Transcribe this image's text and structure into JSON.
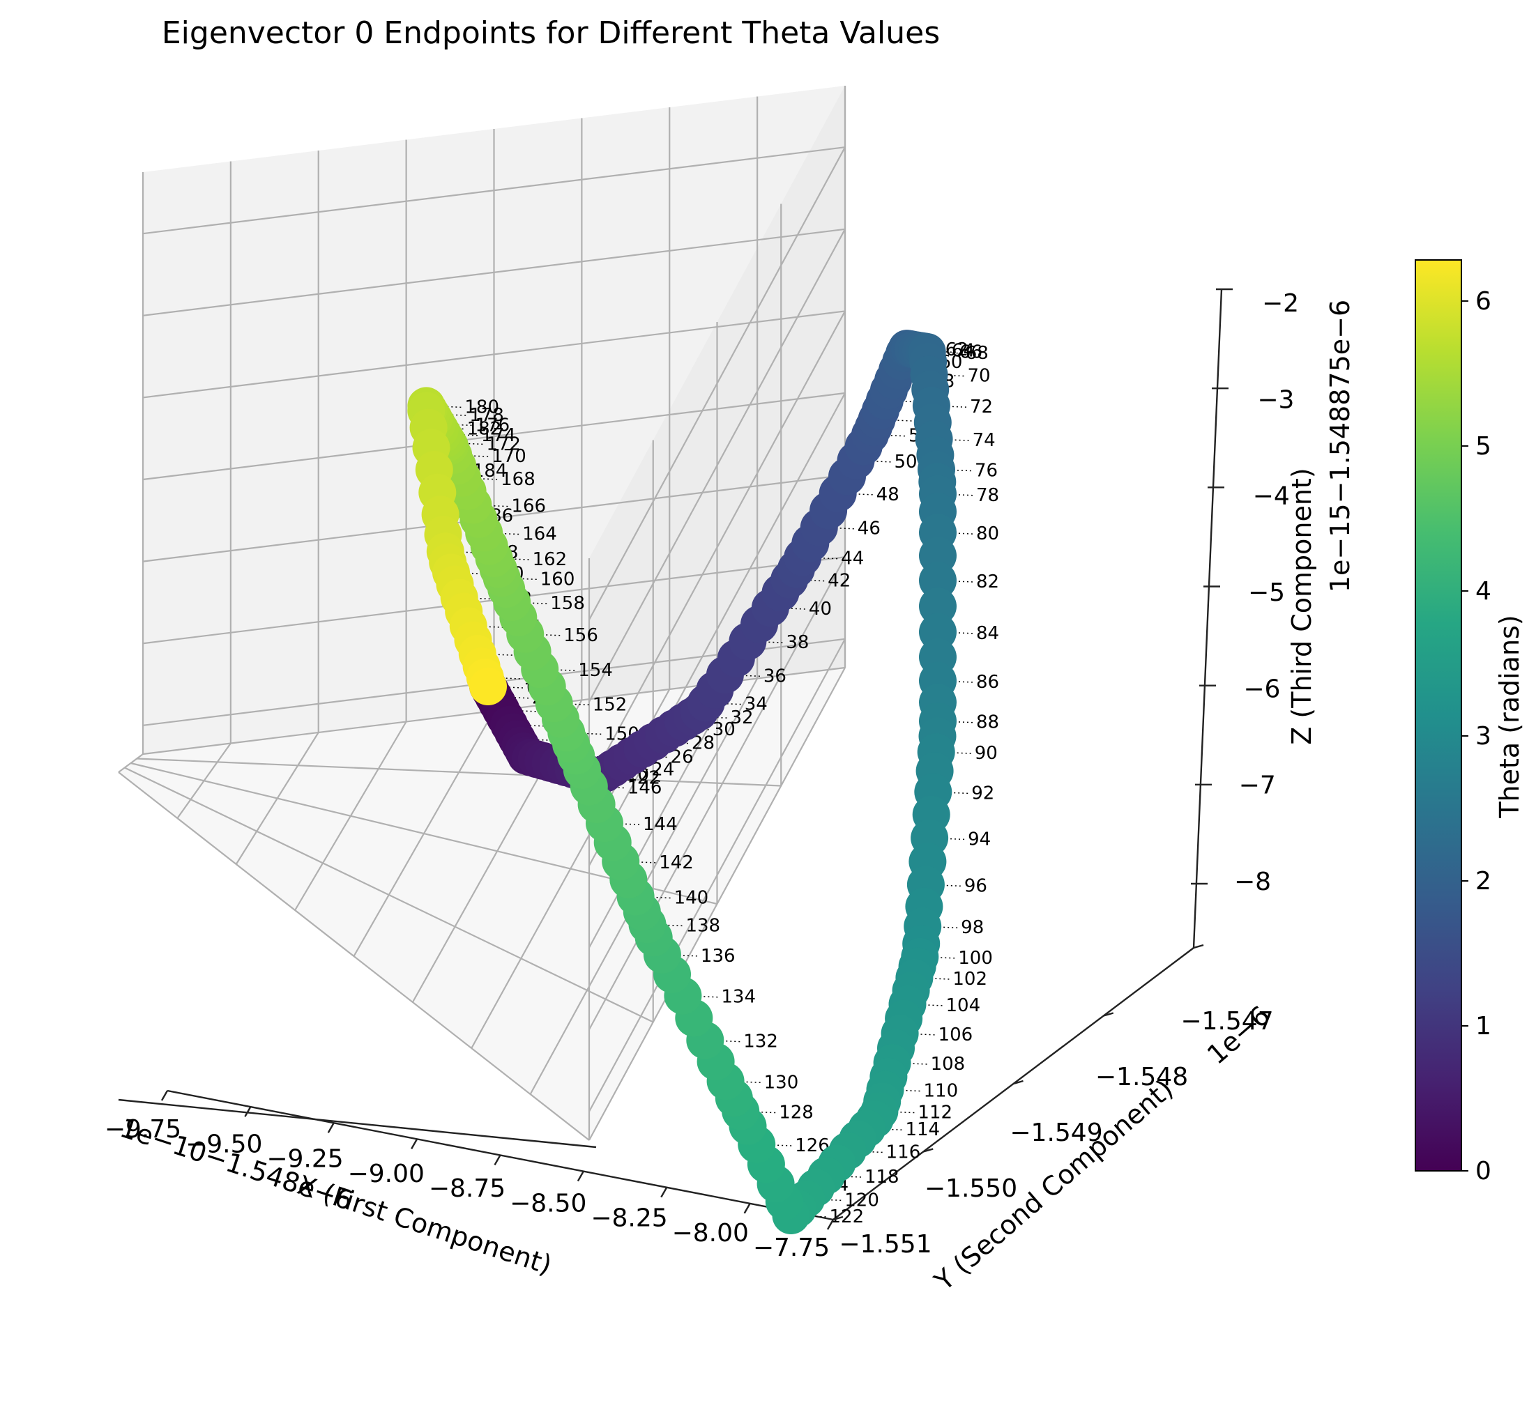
{
  "chart_data": {
    "type": "scatter",
    "title": "Eigenvector 0 Endpoints for Different Theta Values",
    "xlabel": "X (First Component)",
    "ylabel": "Y (Second Component)",
    "zlabel": "Z (Third Component)",
    "x_offset_text": "1e−10−1.548e−6",
    "y_offset_text": "1e−6",
    "z_offset_text": "1e−15−1.548875e−6",
    "x_ticks": [
      "−9.75",
      "−9.50",
      "−9.25",
      "−9.00",
      "−8.75",
      "−8.50",
      "−8.25",
      "−8.00",
      "−7.75"
    ],
    "y_ticks": [
      "−1.551",
      "−1.550",
      "−1.549",
      "−1.548",
      "−1.547"
    ],
    "z_ticks": [
      "−8",
      "−7",
      "−6",
      "−5",
      "−4",
      "−3",
      "−2"
    ],
    "x_range": [
      -9.8,
      -7.7
    ],
    "y_range": [
      -1.5512,
      -1.5468
    ],
    "z_range": [
      -8.8,
      -2.0
    ],
    "colorbar": {
      "label": "Theta (radians)",
      "ticks": [
        "0",
        "1",
        "2",
        "3",
        "4",
        "5",
        "6"
      ],
      "range": [
        0,
        6.2832
      ],
      "colormap": "viridis"
    },
    "curve": {
      "num_points": 200,
      "theta_range": [
        0,
        6.2832
      ],
      "x": "-8.75 + 0.9*cos(theta)",
      "y": "-1.549 + 0.0015*cos(2*theta)",
      "z": "-5.4 - 3.2*sin(theta)"
    },
    "point_labels": "per-point index labels drawn next to each marker",
    "grid": true
  },
  "colors": {
    "pane_back": "#f2f2f2",
    "pane_side": "#ececec",
    "pane_floor": "#f7f7f7",
    "grid": "#b0b0b0",
    "label_line": "#000000"
  }
}
